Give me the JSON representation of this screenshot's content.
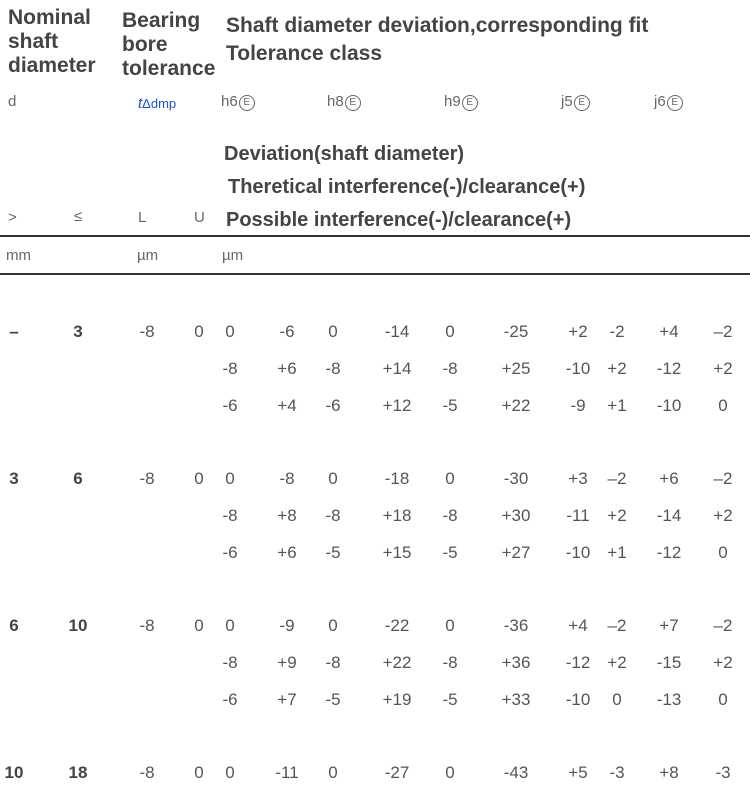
{
  "header": {
    "col_nominal": [
      "Nominal",
      "shaft",
      "diameter"
    ],
    "col_bearing": [
      "Bearing",
      "bore",
      "tolerance"
    ],
    "col_shaft": [
      "Shaft diameter deviation,corresponding fit",
      "Tolerance class"
    ]
  },
  "symbols": {
    "d": "d",
    "t_main": "t",
    "t_sub": "Δdmp",
    "classes": [
      {
        "name": "h6",
        "mark": "E"
      },
      {
        "name": "h8",
        "mark": "E"
      },
      {
        "name": "h9",
        "mark": "E"
      },
      {
        "name": "j5",
        "mark": "E"
      },
      {
        "name": "j6",
        "mark": "E"
      }
    ]
  },
  "legend": [
    "Deviation(shaft diameter)",
    "Theretical interference(-)/clearance(+)",
    "Possible interference(-)/clearance(+)"
  ],
  "labels": {
    "gt": ">",
    "le": "≤",
    "L": "L",
    "U": "U"
  },
  "units": {
    "mm": "mm",
    "um1": "µm",
    "um2": "µm"
  },
  "rows": [
    {
      "gt": "–",
      "le": "3",
      "L": "-8",
      "U": "0",
      "lines": [
        [
          "0",
          "-6",
          "0",
          "-14",
          "0",
          "-25",
          "+2",
          "-2",
          "+4",
          "–2"
        ],
        [
          "-8",
          "+6",
          "-8",
          "+14",
          "-8",
          "+25",
          "-10",
          "+2",
          "-12",
          "+2"
        ],
        [
          "-6",
          "+4",
          "-6",
          "+12",
          "-5",
          "+22",
          "-9",
          "+1",
          "-10",
          "0"
        ]
      ]
    },
    {
      "gt": "3",
      "le": "6",
      "L": "-8",
      "U": "0",
      "lines": [
        [
          "0",
          "-8",
          "0",
          "-18",
          "0",
          "-30",
          "+3",
          "–2",
          "+6",
          "–2"
        ],
        [
          "-8",
          "+8",
          "-8",
          "+18",
          "-8",
          "+30",
          "-11",
          "+2",
          "-14",
          "+2"
        ],
        [
          "-6",
          "+6",
          "-5",
          "+15",
          "-5",
          "+27",
          "-10",
          "+1",
          "-12",
          "0"
        ]
      ]
    },
    {
      "gt": "6",
      "le": "10",
      "L": "-8",
      "U": "0",
      "lines": [
        [
          "0",
          "-9",
          "0",
          "-22",
          "0",
          "-36",
          "+4",
          "–2",
          "+7",
          "–2"
        ],
        [
          "-8",
          "+9",
          "-8",
          "+22",
          "-8",
          "+36",
          "-12",
          "+2",
          "-15",
          "+2"
        ],
        [
          "-6",
          "+7",
          "-5",
          "+19",
          "-5",
          "+33",
          "-10",
          "0",
          "-13",
          "0"
        ]
      ]
    },
    {
      "gt": "10",
      "le": "18",
      "L": "-8",
      "U": "0",
      "lines": [
        [
          "0",
          "-11",
          "0",
          "-27",
          "0",
          "-43",
          "+5",
          "-3",
          "+8",
          "-3"
        ]
      ]
    }
  ]
}
